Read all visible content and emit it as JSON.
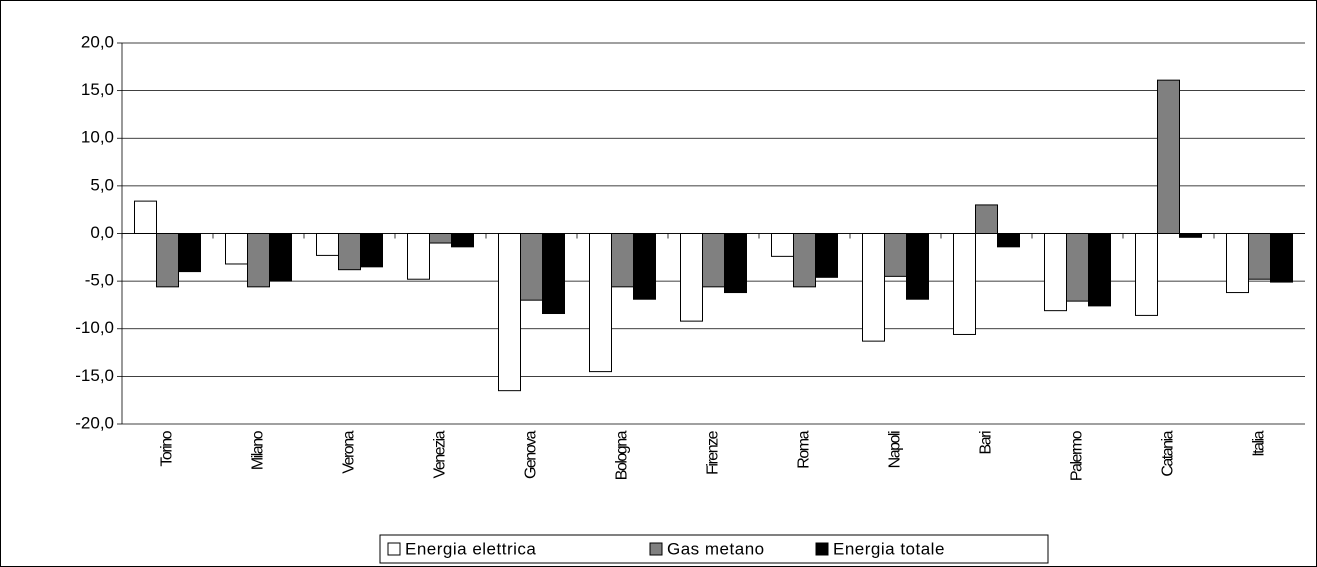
{
  "chart_data": {
    "type": "bar",
    "categories": [
      "Torino",
      "Milano",
      "Verona",
      "Venezia",
      "Genova",
      "Bologna",
      "Firenze",
      "Roma",
      "Napoli",
      "Bari",
      "Palermo",
      "Catania",
      "Italia"
    ],
    "series": [
      {
        "name": "Energia elettrica",
        "color": "#ffffff",
        "values": [
          3.4,
          -3.2,
          -2.3,
          -4.8,
          -16.5,
          -14.5,
          -9.2,
          -2.4,
          -11.3,
          -10.6,
          -8.1,
          -8.6,
          -6.2
        ]
      },
      {
        "name": "Gas metano",
        "color": "#808080",
        "values": [
          -5.6,
          -5.6,
          -3.8,
          -1.0,
          -7.0,
          -5.6,
          -5.6,
          -5.6,
          -4.5,
          3.0,
          -7.1,
          16.1,
          -4.8
        ]
      },
      {
        "name": "Energia totale",
        "color": "#000000",
        "values": [
          -4.0,
          -5.0,
          -3.5,
          -1.4,
          -8.4,
          -6.9,
          -6.2,
          -4.6,
          -6.9,
          -1.4,
          -7.6,
          -0.4,
          -5.1
        ]
      }
    ],
    "ylim": [
      -20,
      20
    ],
    "yticks": [
      {
        "value": -20,
        "label": "-20,0"
      },
      {
        "value": -15,
        "label": "-15,0"
      },
      {
        "value": -10,
        "label": "-10,0"
      },
      {
        "value": -5,
        "label": "-5,0"
      },
      {
        "value": 0,
        "label": "0,0"
      },
      {
        "value": 5,
        "label": "5,0"
      },
      {
        "value": 10,
        "label": "10,0"
      },
      {
        "value": 15,
        "label": "15,0"
      },
      {
        "value": 20,
        "label": "20,0"
      }
    ],
    "grid": true,
    "legend": "bottom"
  }
}
